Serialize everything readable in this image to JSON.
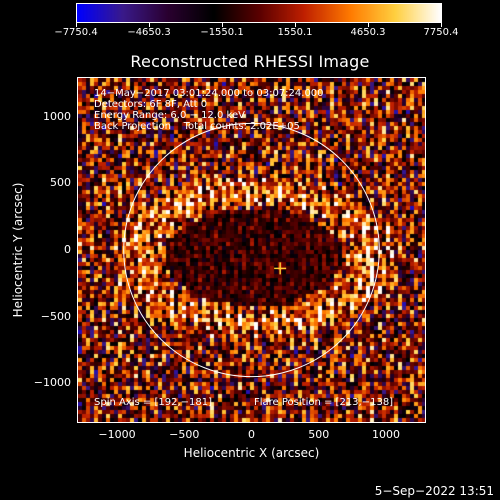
{
  "colorbar": {
    "ticks": [
      "−7750.4",
      "−4650.3",
      "−1550.1",
      "1550.1",
      "4650.3",
      "7750.4"
    ],
    "range": [
      -7750.4,
      7750.4
    ]
  },
  "plot": {
    "title": "Reconstructed RHESSI Image",
    "xlabel": "Heliocentric X (arcsec)",
    "ylabel": "Heliocentric Y (arcsec)",
    "xlim": [
      -1290,
      1290
    ],
    "ylim": [
      -1290,
      1290
    ],
    "xticks": [
      "−1000",
      "−500",
      "0",
      "500",
      "1000"
    ],
    "xtick_values": [
      -1000,
      -500,
      0,
      500,
      1000
    ],
    "yticks": [
      "1000",
      "500",
      "0",
      "−500",
      "−1000"
    ],
    "ytick_values": [
      1000,
      500,
      0,
      -500,
      -1000
    ],
    "solar_radius_arcsec": 950,
    "flare_position": [
      213,
      -138
    ],
    "annotations": {
      "line1": "14−May−2017 03:01:24.000 to 03:07:24.000",
      "line2": "Detectors: 6F 8F, Att 0",
      "line3": "Energy Range: 6.0 − 12.0 keV",
      "line4": "Back Projection    Total counts: 2.02E+05",
      "spin_axis": "Spin Axis = [192,−181]",
      "flare_position": "Flare Position = [213,−138]"
    }
  },
  "footer": {
    "timestamp": "5−Sep−2022 13:51"
  },
  "colors": {
    "background": "#000000",
    "foreground": "#ffffff",
    "colormap": [
      "#0000ff",
      "#3a1a8a",
      "#2a0030",
      "#000000",
      "#5a0000",
      "#c02000",
      "#ff7a00",
      "#ffd040",
      "#ffffff"
    ]
  }
}
